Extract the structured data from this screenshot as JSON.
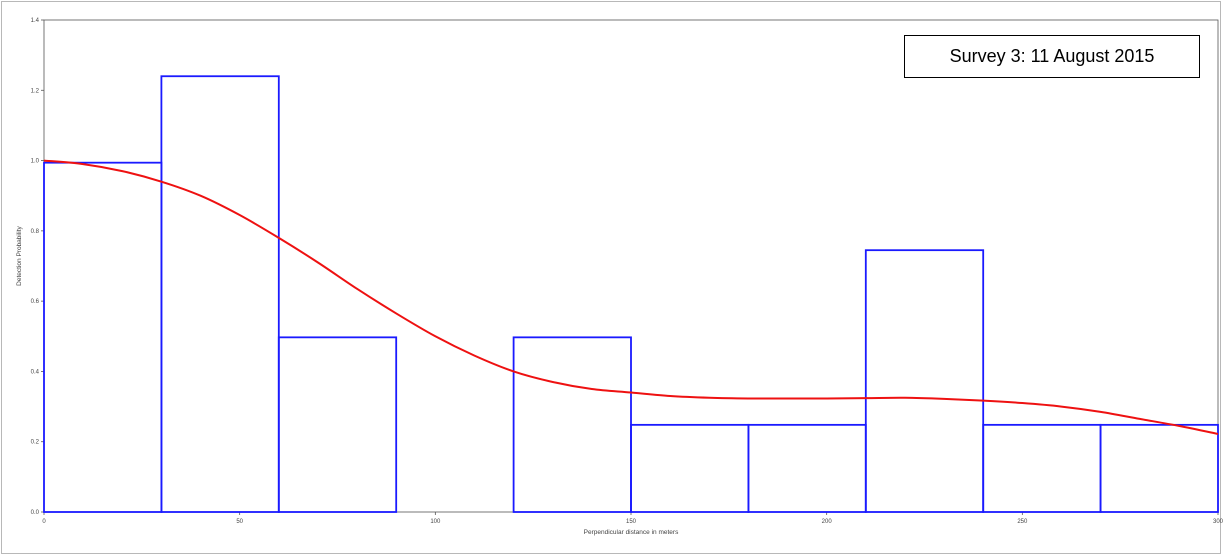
{
  "chart_data": {
    "type": "bar",
    "title": "",
    "xlabel": "Perpendicular distance in meters",
    "ylabel": "Detection Probability",
    "xlim": [
      0,
      300
    ],
    "ylim": [
      0.0,
      1.4
    ],
    "x_ticks": [
      "0",
      "50",
      "100",
      "150",
      "200",
      "250",
      "300"
    ],
    "y_ticks": [
      "0.0",
      "0.2",
      "0.4",
      "0.6",
      "0.8",
      "1.0",
      "1.2",
      "1.4"
    ],
    "bins": [
      {
        "start": 0,
        "end": 30,
        "value": 0.994
      },
      {
        "start": 30,
        "end": 60,
        "value": 1.24
      },
      {
        "start": 60,
        "end": 90,
        "value": 0.497
      },
      {
        "start": 90,
        "end": 120,
        "value": 0.0
      },
      {
        "start": 120,
        "end": 150,
        "value": 0.497
      },
      {
        "start": 150,
        "end": 180,
        "value": 0.248
      },
      {
        "start": 180,
        "end": 210,
        "value": 0.248
      },
      {
        "start": 210,
        "end": 240,
        "value": 0.745
      },
      {
        "start": 240,
        "end": 270,
        "value": 0.248
      },
      {
        "start": 270,
        "end": 300,
        "value": 0.248
      }
    ],
    "fitted_curve": {
      "x": [
        0,
        10,
        20,
        30,
        40,
        50,
        60,
        70,
        80,
        90,
        100,
        110,
        120,
        130,
        140,
        150,
        160,
        170,
        180,
        190,
        200,
        210,
        220,
        230,
        240,
        250,
        260,
        270,
        280,
        290,
        300
      ],
      "y": [
        1.0,
        0.99,
        0.97,
        0.94,
        0.9,
        0.845,
        0.78,
        0.71,
        0.635,
        0.565,
        0.5,
        0.445,
        0.4,
        0.37,
        0.35,
        0.34,
        0.33,
        0.325,
        0.323,
        0.323,
        0.323,
        0.324,
        0.325,
        0.322,
        0.317,
        0.31,
        0.3,
        0.285,
        0.265,
        0.245,
        0.222
      ]
    },
    "colors": {
      "bars": "#1a1aff",
      "curve": "#ee1111"
    },
    "grid": false,
    "legend": "none"
  },
  "annotation": {
    "text": "Survey 3: 11 August 2015"
  }
}
